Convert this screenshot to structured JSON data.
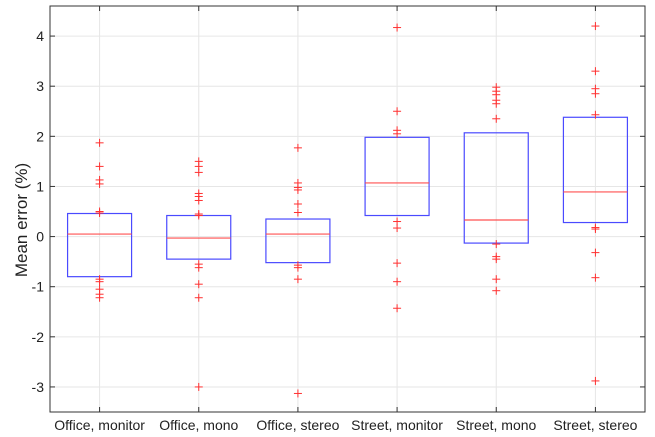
{
  "chart_data": {
    "type": "box",
    "title": "",
    "xlabel": "",
    "ylabel": "Mean error (%)",
    "ylim": [
      -3.5,
      4.6
    ],
    "yticks": [
      -3,
      -2,
      -1,
      0,
      1,
      2,
      3,
      4
    ],
    "ytick_labels": [
      "-3",
      "-2",
      "-1",
      "0",
      "1",
      "2",
      "3",
      "4"
    ],
    "grid": true,
    "categories": [
      "Office, monitor",
      "Office, mono",
      "Office, stereo",
      "Street, monitor",
      "Street, mono",
      "Street, stereo"
    ],
    "series": [
      {
        "q1": -0.8,
        "median": 0.05,
        "q3": 0.46,
        "outliers": [
          1.87,
          1.4,
          1.13,
          1.05,
          0.5,
          0.47,
          -0.85,
          -0.9,
          -1.05,
          -1.15,
          -1.22
        ]
      },
      {
        "q1": -0.45,
        "median": -0.03,
        "q3": 0.42,
        "outliers": [
          1.5,
          1.4,
          1.28,
          0.86,
          0.8,
          0.72,
          0.45,
          0.42,
          -0.55,
          -0.62,
          -0.95,
          -1.22,
          -3.0
        ]
      },
      {
        "q1": -0.52,
        "median": 0.05,
        "q3": 0.35,
        "outliers": [
          1.77,
          1.07,
          0.98,
          0.93,
          0.65,
          0.48,
          -0.57,
          -0.62,
          -0.85,
          -3.13
        ]
      },
      {
        "q1": 0.42,
        "median": 1.07,
        "q3": 1.98,
        "outliers": [
          4.17,
          2.5,
          2.12,
          2.05,
          0.3,
          0.17,
          -0.53,
          -0.9,
          -1.43
        ]
      },
      {
        "q1": -0.13,
        "median": 0.33,
        "q3": 2.07,
        "outliers": [
          2.98,
          2.9,
          2.83,
          2.72,
          2.65,
          2.35,
          -0.15,
          -0.4,
          -0.45,
          -0.85,
          -1.08
        ]
      },
      {
        "q1": 0.28,
        "median": 0.89,
        "q3": 2.38,
        "outliers": [
          4.2,
          3.3,
          2.95,
          2.85,
          2.43,
          0.18,
          0.15,
          -0.32,
          -0.82,
          -2.88
        ]
      }
    ],
    "colors": {
      "box": "#4a4aff",
      "median": "#ff5050",
      "outlier": "#ff3030",
      "grid": "#e6e6e6",
      "axis": "#333333"
    }
  }
}
